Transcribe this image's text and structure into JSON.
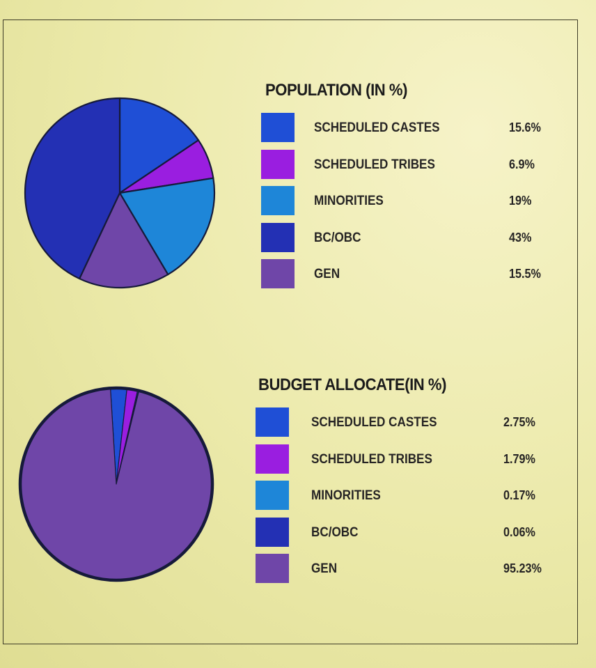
{
  "chart_data": [
    {
      "type": "pie",
      "title": "POPULATION (IN %)",
      "categories": [
        "SCHEDULED CASTES",
        "SCHEDULED TRIBES",
        "MINORITIES",
        "BC/OBC",
        "GEN"
      ],
      "values": [
        15.6,
        6.9,
        19,
        43,
        15.5
      ],
      "value_labels": [
        "15.6%",
        "6.9%",
        "19%",
        "43%",
        "15.5%"
      ],
      "colors": [
        "#1f4fd6",
        "#9a1ee0",
        "#1e86d8",
        "#2330b4",
        "#6f46a8"
      ],
      "legend_placement": "right"
    },
    {
      "type": "pie",
      "title": "BUDGET ALLOCATE(IN %)",
      "categories": [
        "SCHEDULED CASTES",
        "SCHEDULED TRIBES",
        "MINORITIES",
        "BC/OBC",
        "GEN"
      ],
      "values": [
        2.75,
        1.79,
        0.17,
        0.06,
        95.23
      ],
      "value_labels": [
        "2.75%",
        "1.79%",
        "0.17%",
        "0.06%",
        "95.23%"
      ],
      "colors": [
        "#1f4fd6",
        "#9a1ee0",
        "#1e86d8",
        "#2330b4",
        "#6f46a8"
      ],
      "legend_placement": "right"
    }
  ]
}
